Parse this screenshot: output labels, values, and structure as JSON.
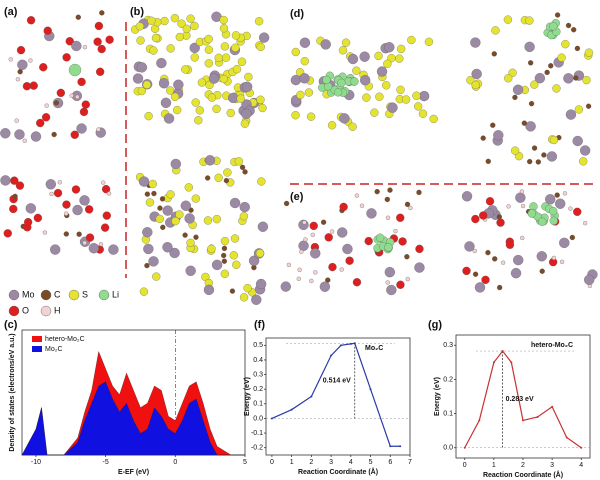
{
  "panel_labels": [
    "(a)",
    "(b)",
    "(c)",
    "(d)",
    "(e)",
    "(f)",
    "(g)"
  ],
  "legend": [
    {
      "label": "Mo",
      "color": "#9c8aa4"
    },
    {
      "label": "C",
      "color": "#7b4a26"
    },
    {
      "label": "S",
      "color": "#e4e430"
    },
    {
      "label": "Li",
      "color": "#8fdc8f"
    },
    {
      "label": "O",
      "color": "#dd1f1f"
    },
    {
      "label": "H",
      "color": "#f2d2d2"
    }
  ],
  "chart_data": [
    {
      "type": "area",
      "xlabel": "E-EF (eV)",
      "ylabel": "Density of states (electrons/eV a.u.)",
      "x": [
        -11,
        -10,
        -9.6,
        -9.2,
        -8,
        -7,
        -6.5,
        -6,
        -5.5,
        -5,
        -4.5,
        -4,
        -3.5,
        -3,
        -2.5,
        -2,
        -1.5,
        -1,
        -0.5,
        0,
        0.5,
        1,
        1.5,
        2,
        2.5,
        3,
        3.5,
        4,
        5
      ],
      "series": [
        {
          "name": "hetero-Mo₂C",
          "color": "#f01010",
          "values": [
            0,
            0.3,
            0.55,
            0,
            0,
            0.2,
            0.5,
            0.75,
            1.2,
            1.0,
            0.8,
            0.7,
            0.95,
            0.75,
            0.55,
            0.6,
            0.8,
            0.75,
            0.45,
            0.4,
            0.6,
            0.8,
            0.85,
            0.6,
            0.3,
            0.1,
            0.05,
            0,
            0
          ]
        },
        {
          "name": "Mo₂C",
          "color": "#1010e0",
          "values": [
            0,
            0.3,
            0.55,
            0,
            0,
            0.15,
            0.4,
            0.6,
            0.8,
            0.85,
            0.65,
            0.5,
            0.6,
            0.4,
            0.25,
            0.3,
            0.55,
            0.45,
            0.3,
            0.25,
            0.4,
            0.6,
            0.65,
            0.4,
            0.15,
            0,
            0,
            0,
            0
          ]
        }
      ],
      "xlim": [
        -11,
        5
      ],
      "xticks": [
        -10,
        -5,
        0,
        5
      ],
      "ylim": [
        0,
        1.45
      ]
    },
    {
      "type": "line",
      "title": "Mo₂C",
      "xlabel": "Reaction Coordinate (Å)",
      "ylabel": "Energy (eV)",
      "annotation": "0.514 eV",
      "x": [
        0,
        1,
        2,
        3,
        3.5,
        4,
        4.2,
        5,
        6,
        6.5
      ],
      "values": [
        0,
        0.06,
        0.15,
        0.43,
        0.5,
        0.51,
        0.514,
        0.2,
        -0.19,
        -0.19
      ],
      "color": "#2a3aa8",
      "xlim": [
        -0.3,
        7
      ],
      "xticks": [
        0,
        1,
        2,
        3,
        4,
        5,
        6,
        7
      ],
      "ylim": [
        -0.25,
        0.55
      ],
      "yticks": [
        -0.2,
        -0.1,
        {
          "value": 0,
          "label": "0.0"
        },
        0.1,
        0.2,
        0.3,
        0.4,
        0.5
      ]
    },
    {
      "type": "line",
      "title": "hetero-Mo₂C",
      "xlabel": "Reaction Coordinate (Å)",
      "ylabel": "Energy (eV)",
      "annotation": "0.283 eV",
      "x": [
        0,
        0.5,
        1,
        1.3,
        1.6,
        2,
        2.5,
        3,
        3.5,
        4
      ],
      "values": [
        0,
        0.08,
        0.25,
        0.283,
        0.25,
        0.08,
        0.09,
        0.12,
        0.03,
        0
      ],
      "color": "#c83030",
      "xlim": [
        -0.3,
        4.3
      ],
      "xticks": [
        0,
        1,
        2,
        3,
        4
      ],
      "ylim": [
        -0.03,
        0.33
      ],
      "yticks": [
        {
          "value": 0,
          "label": "0.0"
        },
        0.1,
        0.2,
        0.3
      ]
    }
  ]
}
